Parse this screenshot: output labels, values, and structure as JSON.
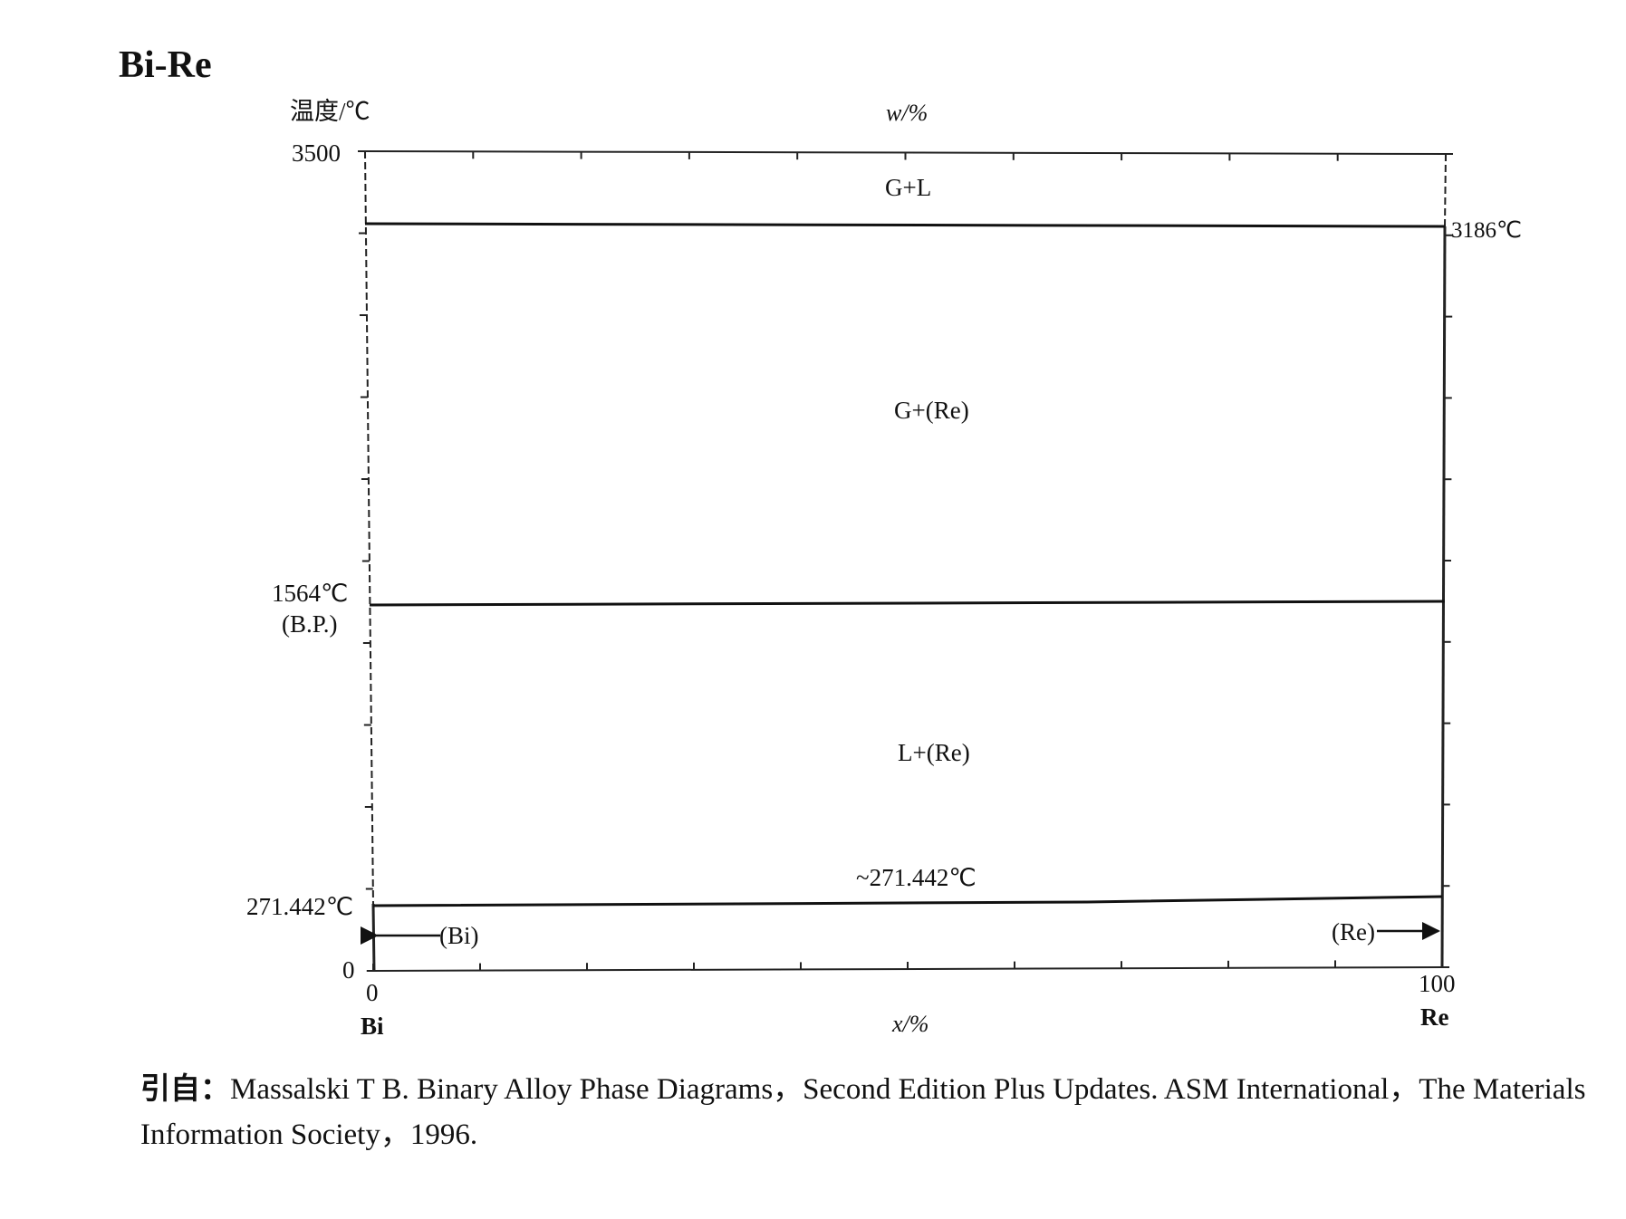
{
  "title": "Bi-Re",
  "diagram": {
    "y_axis_label": "温度/℃",
    "top_axis_label": "w/%",
    "bottom_axis_label": "x/%",
    "y_ticks": [
      "3500",
      "0"
    ],
    "x_ticks": [
      "0",
      "100"
    ],
    "left_element": "Bi",
    "right_element": "Re",
    "regions": [
      "G+L",
      "G+(Re)",
      "L+(Re)"
    ],
    "annotations": {
      "re_melting": "3186℃",
      "bi_boiling_temp": "1564℃",
      "bi_boiling_note": "(B.P.)",
      "bi_melting": "271.442℃",
      "eutectic": "~271.442℃",
      "bi_phase": "(Bi)",
      "re_phase": "(Re)"
    }
  },
  "reference": {
    "lead": "引自：",
    "text": "Massalski T B.  Binary Alloy Phase Diagrams，Second Edition Plus Updates.  ASM International，The Materials Information Society，1996."
  },
  "chart_data": {
    "type": "phase_diagram",
    "ylim": [
      0,
      3500
    ],
    "xlim": [
      0,
      100
    ],
    "lines": [
      {
        "name": "liquidus_gas",
        "y": 3186
      },
      {
        "name": "bi_boiling",
        "y": 1564
      },
      {
        "name": "eutectic",
        "y": 271.442
      }
    ]
  }
}
